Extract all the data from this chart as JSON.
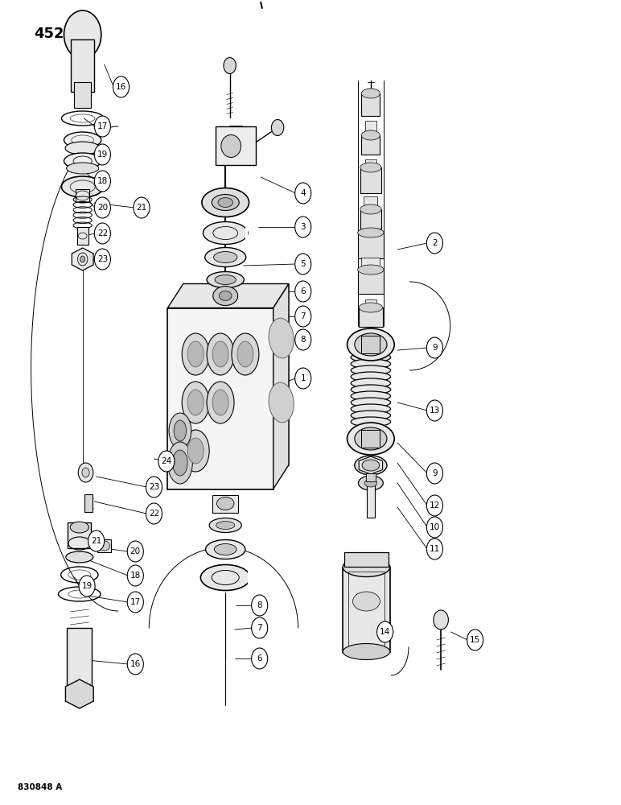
{
  "page_label": "452",
  "figure_number": "830848 A",
  "background_color": "#ffffff",
  "figsize": [
    7.72,
    10.0
  ],
  "dpi": 100,
  "bubble_r": 0.013,
  "bubbles_left_top": [
    {
      "n": 16,
      "bx": 0.195,
      "by": 0.892
    },
    {
      "n": 17,
      "bx": 0.165,
      "by": 0.843
    },
    {
      "n": 19,
      "bx": 0.165,
      "by": 0.808
    },
    {
      "n": 18,
      "bx": 0.165,
      "by": 0.775
    },
    {
      "n": 20,
      "bx": 0.165,
      "by": 0.742
    },
    {
      "n": 21,
      "bx": 0.228,
      "by": 0.742
    },
    {
      "n": 22,
      "bx": 0.165,
      "by": 0.71
    },
    {
      "n": 23,
      "bx": 0.165,
      "by": 0.678
    }
  ],
  "bubbles_center": [
    {
      "n": 4,
      "bx": 0.488,
      "by": 0.76
    },
    {
      "n": 3,
      "bx": 0.488,
      "by": 0.718
    },
    {
      "n": 5,
      "bx": 0.488,
      "by": 0.672
    },
    {
      "n": 6,
      "bx": 0.488,
      "by": 0.638
    },
    {
      "n": 7,
      "bx": 0.488,
      "by": 0.607
    },
    {
      "n": 8,
      "bx": 0.488,
      "by": 0.578
    },
    {
      "n": 1,
      "bx": 0.488,
      "by": 0.53
    },
    {
      "n": 24,
      "bx": 0.268,
      "by": 0.427
    },
    {
      "n": 8,
      "bx": 0.418,
      "by": 0.248
    },
    {
      "n": 7,
      "bx": 0.418,
      "by": 0.22
    },
    {
      "n": 6,
      "bx": 0.418,
      "by": 0.182
    }
  ],
  "bubbles_right": [
    {
      "n": 2,
      "bx": 0.7,
      "by": 0.698
    },
    {
      "n": 9,
      "bx": 0.7,
      "by": 0.568
    },
    {
      "n": 13,
      "bx": 0.7,
      "by": 0.49
    },
    {
      "n": 9,
      "bx": 0.7,
      "by": 0.412
    },
    {
      "n": 12,
      "bx": 0.7,
      "by": 0.372
    },
    {
      "n": 10,
      "bx": 0.7,
      "by": 0.345
    },
    {
      "n": 11,
      "bx": 0.7,
      "by": 0.318
    },
    {
      "n": 14,
      "bx": 0.62,
      "by": 0.215
    },
    {
      "n": 15,
      "bx": 0.765,
      "by": 0.205
    }
  ],
  "bubbles_left_bot": [
    {
      "n": 23,
      "bx": 0.248,
      "by": 0.395
    },
    {
      "n": 22,
      "bx": 0.248,
      "by": 0.362
    },
    {
      "n": 21,
      "bx": 0.155,
      "by": 0.328
    },
    {
      "n": 20,
      "bx": 0.218,
      "by": 0.315
    },
    {
      "n": 18,
      "bx": 0.218,
      "by": 0.285
    },
    {
      "n": 19,
      "bx": 0.14,
      "by": 0.272
    },
    {
      "n": 17,
      "bx": 0.218,
      "by": 0.252
    },
    {
      "n": 16,
      "bx": 0.218,
      "by": 0.175
    }
  ]
}
